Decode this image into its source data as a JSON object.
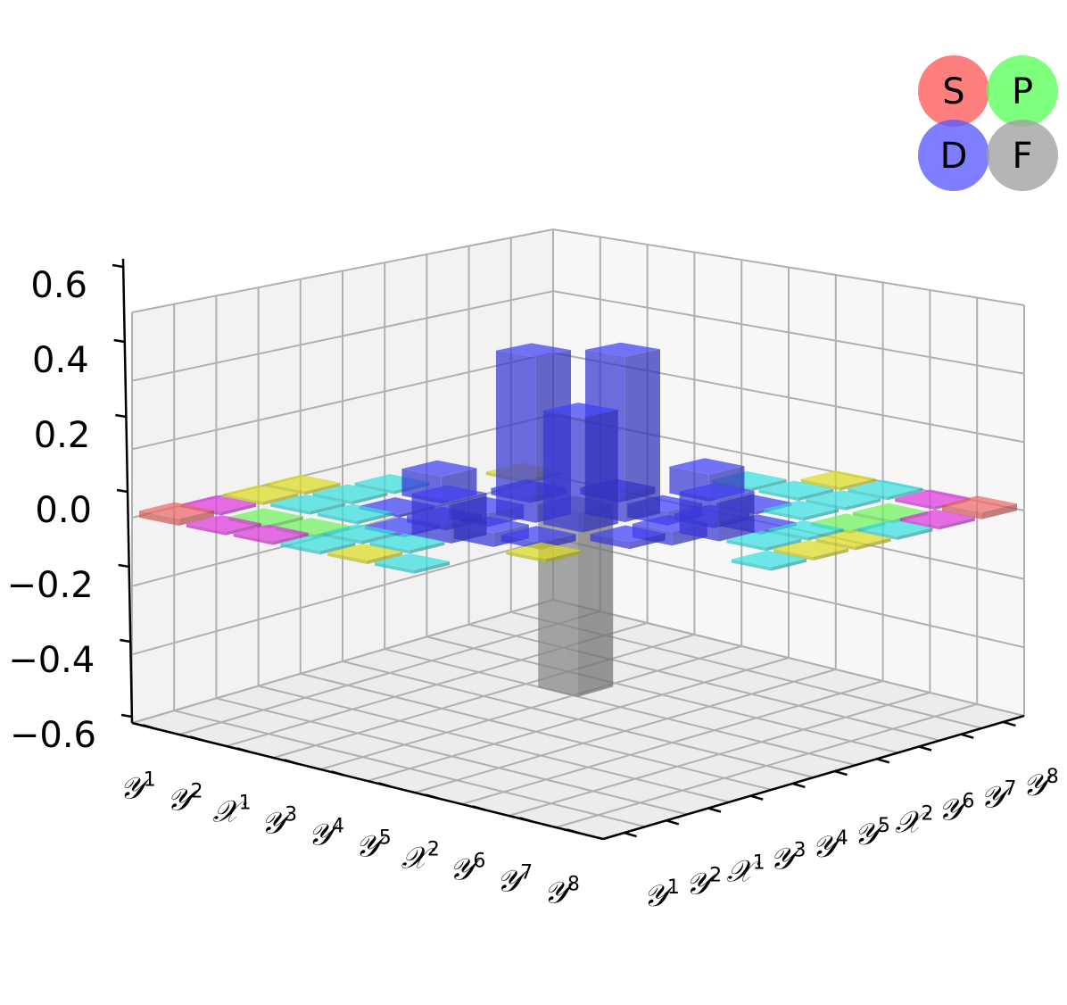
{
  "chart_data": {
    "type": "bar3d",
    "zlim": [
      -0.6,
      0.6
    ],
    "zticks": [
      "0.6",
      "0.4",
      "0.2",
      "0.0",
      "−0.2",
      "−0.4",
      "−0.6"
    ],
    "row_labels": [
      {
        "base": "𝒴",
        "sup": "1"
      },
      {
        "base": "𝒴",
        "sup": "2"
      },
      {
        "base": "𝒳",
        "sup": "1"
      },
      {
        "base": "𝒴",
        "sup": "3"
      },
      {
        "base": "𝒴",
        "sup": "4"
      },
      {
        "base": "𝒴",
        "sup": "5"
      },
      {
        "base": "𝒳",
        "sup": "2"
      },
      {
        "base": "𝒴",
        "sup": "6"
      },
      {
        "base": "𝒴",
        "sup": "7"
      },
      {
        "base": "𝒴",
        "sup": "8"
      }
    ],
    "col_labels": [
      {
        "base": "𝒴",
        "sup": "1"
      },
      {
        "base": "𝒴",
        "sup": "2"
      },
      {
        "base": "𝒳",
        "sup": "1"
      },
      {
        "base": "𝒴",
        "sup": "3"
      },
      {
        "base": "𝒴",
        "sup": "4"
      },
      {
        "base": "𝒴",
        "sup": "5"
      },
      {
        "base": "𝒳",
        "sup": "2"
      },
      {
        "base": "𝒴",
        "sup": "6"
      },
      {
        "base": "𝒴",
        "sup": "7"
      },
      {
        "base": "𝒴",
        "sup": "8"
      }
    ],
    "legend": {
      "placement": "top-right",
      "items": [
        {
          "label": "S",
          "color": "#ff5a5a"
        },
        {
          "label": "P",
          "color": "#5aff5a"
        },
        {
          "label": "D",
          "color": "#5a5aff"
        },
        {
          "label": "F",
          "color": "#a0a0a0"
        }
      ]
    },
    "orbital_colors": {
      "S": "#d95f5f",
      "P": "#66dd55",
      "D": "#3a3ae0",
      "F": "#8c8c8c",
      "SP": "#c8c820",
      "SD": "#cc33cc",
      "PD": "#33cccc"
    },
    "bars": [
      {
        "row": 0,
        "col": 0,
        "value": 0.02,
        "orbital": "S"
      },
      {
        "row": 9,
        "col": 9,
        "value": 0.02,
        "orbital": "S"
      },
      {
        "row": 0,
        "col": 1,
        "value": 0.01,
        "orbital": "SD"
      },
      {
        "row": 1,
        "col": 0,
        "value": 0.01,
        "orbital": "SD"
      },
      {
        "row": 0,
        "col": 2,
        "value": 0.01,
        "orbital": "SP"
      },
      {
        "row": 0,
        "col": 3,
        "value": 0.01,
        "orbital": "SP"
      },
      {
        "row": 2,
        "col": 0,
        "value": 0.01,
        "orbital": "SD"
      },
      {
        "row": 3,
        "col": 0,
        "value": 0.01,
        "orbital": "PD"
      },
      {
        "row": 9,
        "col": 8,
        "value": 0.01,
        "orbital": "SD"
      },
      {
        "row": 8,
        "col": 9,
        "value": 0.01,
        "orbital": "SD"
      },
      {
        "row": 9,
        "col": 7,
        "value": 0.01,
        "orbital": "PD"
      },
      {
        "row": 7,
        "col": 9,
        "value": 0.01,
        "orbital": "PD"
      },
      {
        "row": 9,
        "col": 6,
        "value": 0.01,
        "orbital": "SP"
      },
      {
        "row": 6,
        "col": 9,
        "value": 0.01,
        "orbital": "SP"
      },
      {
        "row": 1,
        "col": 1,
        "value": -0.01,
        "orbital": "P"
      },
      {
        "row": 2,
        "col": 1,
        "value": -0.01,
        "orbital": "P"
      },
      {
        "row": 1,
        "col": 2,
        "value": 0.01,
        "orbital": "PD"
      },
      {
        "row": 3,
        "col": 1,
        "value": 0.01,
        "orbital": "PD"
      },
      {
        "row": 1,
        "col": 3,
        "value": 0.01,
        "orbital": "PD"
      },
      {
        "row": 2,
        "col": 2,
        "value": 0.01,
        "orbital": "PD"
      },
      {
        "row": 8,
        "col": 8,
        "value": -0.01,
        "orbital": "P"
      },
      {
        "row": 8,
        "col": 7,
        "value": -0.01,
        "orbital": "P"
      },
      {
        "row": 7,
        "col": 8,
        "value": 0.01,
        "orbital": "PD"
      },
      {
        "row": 8,
        "col": 6,
        "value": 0.01,
        "orbital": "PD"
      },
      {
        "row": 6,
        "col": 8,
        "value": 0.01,
        "orbital": "PD"
      },
      {
        "row": 7,
        "col": 7,
        "value": 0.01,
        "orbital": "PD"
      },
      {
        "row": 3,
        "col": 3,
        "value": -0.02,
        "orbital": "D"
      },
      {
        "row": 6,
        "col": 6,
        "value": -0.02,
        "orbital": "D"
      },
      {
        "row": 3,
        "col": 2,
        "value": -0.01,
        "orbital": "D"
      },
      {
        "row": 2,
        "col": 3,
        "value": -0.01,
        "orbital": "D"
      },
      {
        "row": 6,
        "col": 7,
        "value": -0.01,
        "orbital": "D"
      },
      {
        "row": 7,
        "col": 6,
        "value": -0.01,
        "orbital": "D"
      },
      {
        "row": 2,
        "col": 6,
        "value": 0.01,
        "orbital": "SP"
      },
      {
        "row": 6,
        "col": 2,
        "value": 0.01,
        "orbital": "SP"
      },
      {
        "row": 4,
        "col": 4,
        "value": 0.48,
        "orbital": "D"
      },
      {
        "row": 5,
        "col": 5,
        "value": 0.48,
        "orbital": "D"
      },
      {
        "row": 4,
        "col": 5,
        "value": -0.54,
        "orbital": "F"
      },
      {
        "row": 5,
        "col": 4,
        "value": 0.33,
        "orbital": "D"
      },
      {
        "row": 4,
        "col": 3,
        "value": -0.04,
        "orbital": "D"
      },
      {
        "row": 3,
        "col": 4,
        "value": -0.04,
        "orbital": "D"
      },
      {
        "row": 5,
        "col": 6,
        "value": -0.04,
        "orbital": "D"
      },
      {
        "row": 6,
        "col": 5,
        "value": -0.04,
        "orbital": "D"
      },
      {
        "row": 3,
        "col": 5,
        "value": 0.02,
        "orbital": "D"
      },
      {
        "row": 5,
        "col": 3,
        "value": -0.02,
        "orbital": "D"
      },
      {
        "row": 4,
        "col": 6,
        "value": 0.02,
        "orbital": "D"
      },
      {
        "row": 6,
        "col": 4,
        "value": -0.02,
        "orbital": "D"
      },
      {
        "row": 4,
        "col": 2,
        "value": 0.12,
        "orbital": "D"
      },
      {
        "row": 2,
        "col": 4,
        "value": 0.08,
        "orbital": "D"
      },
      {
        "row": 5,
        "col": 7,
        "value": 0.08,
        "orbital": "D"
      },
      {
        "row": 7,
        "col": 5,
        "value": 0.12,
        "orbital": "D"
      },
      {
        "row": 4,
        "col": 1,
        "value": 0.01,
        "orbital": "PD"
      },
      {
        "row": 1,
        "col": 4,
        "value": 0.01,
        "orbital": "PD"
      },
      {
        "row": 5,
        "col": 8,
        "value": 0.01,
        "orbital": "PD"
      },
      {
        "row": 8,
        "col": 5,
        "value": 0.01,
        "orbital": "PD"
      },
      {
        "row": 4,
        "col": 0,
        "value": 0.01,
        "orbital": "SP"
      },
      {
        "row": 9,
        "col": 5,
        "value": 0.01,
        "orbital": "SP"
      },
      {
        "row": 5,
        "col": 0,
        "value": 0.01,
        "orbital": "PD"
      },
      {
        "row": 9,
        "col": 4,
        "value": 0.01,
        "orbital": "PD"
      }
    ]
  }
}
